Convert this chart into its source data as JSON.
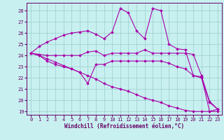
{
  "xlabel": "Windchill (Refroidissement éolien,°C)",
  "bg_color": "#c8f0f0",
  "line_color": "#aa00aa",
  "grid_color": "#99cccc",
  "xlim": [
    -0.5,
    23.5
  ],
  "ylim": [
    18.7,
    28.7
  ],
  "yticks": [
    19,
    20,
    21,
    22,
    23,
    24,
    25,
    26,
    27,
    28
  ],
  "xticks": [
    0,
    1,
    2,
    3,
    4,
    5,
    6,
    7,
    8,
    9,
    10,
    11,
    12,
    13,
    14,
    15,
    16,
    17,
    18,
    19,
    20,
    21,
    22,
    23
  ],
  "lines_x": [
    [
      0,
      1,
      2,
      3,
      4,
      5,
      6,
      7,
      8,
      9,
      10,
      11,
      12,
      13,
      14,
      15,
      16,
      17,
      18,
      19,
      20,
      21,
      22,
      23
    ],
    [
      0,
      1,
      2,
      3,
      4,
      5,
      6,
      7,
      8,
      9,
      10,
      11,
      12,
      13,
      14,
      15,
      16,
      17,
      18,
      19,
      20,
      21,
      22,
      23
    ],
    [
      0,
      1,
      2,
      3,
      4,
      5,
      6,
      7,
      8,
      9,
      10,
      11,
      12,
      13,
      14,
      15,
      16,
      17,
      18,
      19,
      20,
      21,
      22,
      23
    ],
    [
      0,
      1,
      2,
      3,
      4,
      5,
      6,
      7,
      8,
      9,
      10,
      11,
      12,
      13,
      14,
      15,
      16,
      17,
      18,
      19,
      20,
      21,
      22,
      23
    ]
  ],
  "lines_y": [
    [
      24.2,
      24.8,
      25.2,
      25.5,
      25.8,
      26.0,
      26.1,
      26.2,
      25.9,
      25.5,
      26.1,
      28.2,
      27.8,
      26.2,
      25.5,
      28.2,
      28.0,
      25.0,
      24.6,
      24.5,
      22.2,
      22.1,
      19.0,
      19.2
    ],
    [
      24.2,
      24.1,
      24.0,
      24.0,
      24.0,
      24.0,
      24.0,
      24.3,
      24.4,
      24.0,
      24.2,
      24.2,
      24.2,
      24.2,
      24.5,
      24.2,
      24.2,
      24.2,
      24.2,
      24.2,
      24.1,
      22.2,
      19.9,
      19.2
    ],
    [
      24.2,
      24.0,
      23.5,
      23.2,
      23.0,
      22.8,
      22.5,
      21.5,
      23.2,
      23.2,
      23.5,
      23.5,
      23.5,
      23.5,
      23.5,
      23.5,
      23.5,
      23.3,
      23.0,
      22.8,
      22.2,
      22.0,
      19.8,
      19.2
    ],
    [
      24.2,
      24.0,
      23.7,
      23.4,
      23.1,
      22.8,
      22.5,
      22.2,
      21.9,
      21.5,
      21.2,
      21.0,
      20.8,
      20.5,
      20.2,
      20.0,
      19.8,
      19.5,
      19.3,
      19.1,
      19.0,
      19.0,
      19.0,
      19.0
    ]
  ]
}
